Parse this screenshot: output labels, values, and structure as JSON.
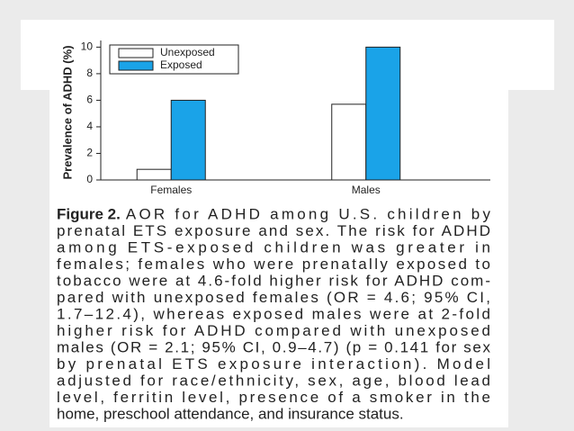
{
  "chart_data": {
    "type": "bar",
    "y_label": "Prevalence of ADHD (%)",
    "categories": [
      "Females",
      "Males"
    ],
    "series": [
      {
        "name": "Unexposed",
        "color": "#ffffff",
        "values": [
          0.8,
          5.7
        ]
      },
      {
        "name": "Exposed",
        "color": "#1aa3e8",
        "values": [
          6.0,
          10.0
        ]
      }
    ],
    "ylim": [
      0,
      10.5
    ],
    "yticks": [
      0,
      2,
      4,
      6,
      8,
      10
    ],
    "legend": "top-left"
  },
  "caption": {
    "label": "Figure 2.",
    "lines": [
      "AOR for ADHD among U.S. children by",
      "prenatal ETS exposure and sex. The risk for ADHD",
      "among ETS-exposed children was greater in",
      "females; females who were prenatally exposed to",
      "tobacco were at 4.6-fold higher risk for ADHD com-",
      "pared with unexposed females (OR = 4.6; 95% CI,",
      "1.7–12.4), whereas exposed males were at 2-fold",
      "higher risk for ADHD compared with unexposed",
      "males (OR = 2.1; 95% CI, 0.9–4.7) (p = 0.141 for sex",
      "by prenatal ETS exposure interaction). Model",
      "adjusted for race/ethnicity, sex, age, blood lead",
      "level, ferritin level, presence of a smoker in the",
      "home, preschool attendance, and insurance status."
    ]
  }
}
